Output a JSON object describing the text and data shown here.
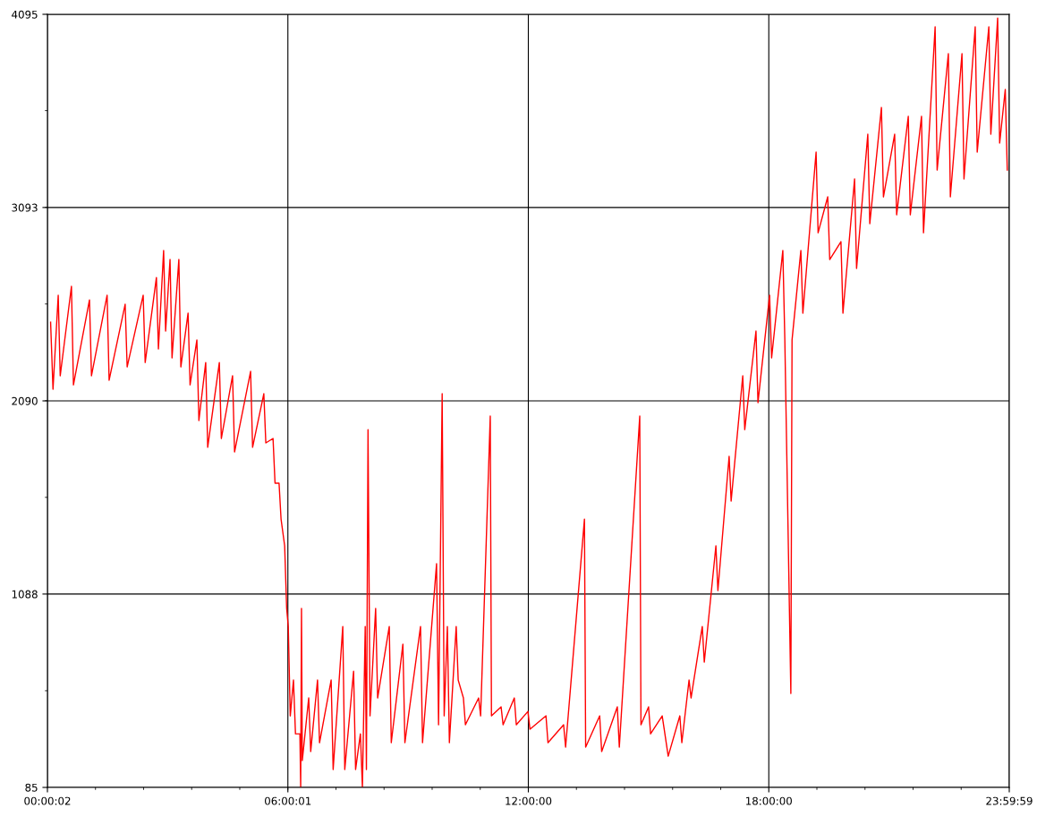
{
  "chart_data": {
    "type": "line",
    "marker": "none",
    "line_style": "solid",
    "grid": true,
    "xlim": [
      0.00056,
      23.99972
    ],
    "ylim": [
      85,
      4095
    ],
    "xticks": [
      {
        "value": 0.00056,
        "label": "00:00:02"
      },
      {
        "value": 6.00028,
        "label": "06:00:01"
      },
      {
        "value": 12,
        "label": "12:00:00"
      },
      {
        "value": 18,
        "label": "18:00:00"
      },
      {
        "value": 23.99972,
        "label": "23:59:59"
      }
    ],
    "yticks": [
      85,
      1088,
      2090,
      3093,
      4095
    ],
    "series": [
      {
        "color": "#ff0000",
        "x": [
          0.08,
          0.14,
          0.27,
          0.32,
          0.6,
          0.65,
          1.05,
          1.1,
          1.49,
          1.54,
          1.94,
          1.99,
          2.39,
          2.44,
          2.72,
          2.77,
          2.9,
          2.95,
          3.06,
          3.11,
          3.28,
          3.33,
          3.51,
          3.56,
          3.73,
          3.78,
          3.95,
          4.0,
          4.29,
          4.34,
          4.62,
          4.67,
          5.07,
          5.12,
          5.4,
          5.45,
          5.63,
          5.68,
          5.78,
          5.83,
          5.92,
          5.97,
          6.01,
          6.06,
          6.14,
          6.19,
          6.3,
          6.32,
          6.34,
          6.36,
          6.52,
          6.57,
          6.74,
          6.79,
          7.08,
          7.13,
          7.37,
          7.42,
          7.64,
          7.69,
          7.81,
          7.86,
          7.93,
          7.96,
          8.0,
          8.05,
          8.19,
          8.24,
          8.53,
          8.58,
          8.87,
          8.92,
          9.31,
          9.36,
          9.71,
          9.76,
          9.85,
          9.9,
          9.98,
          10.03,
          10.2,
          10.25,
          10.38,
          10.43,
          10.76,
          10.81,
          11.05,
          11.08,
          11.32,
          11.37,
          11.65,
          11.7,
          11.99,
          12.04,
          12.44,
          12.49,
          12.88,
          12.93,
          13.4,
          13.43,
          13.78,
          13.83,
          14.22,
          14.27,
          14.78,
          14.81,
          15.0,
          15.05,
          15.34,
          15.39,
          15.49,
          15.78,
          15.83,
          16.01,
          16.06,
          16.34,
          16.39,
          16.68,
          16.73,
          17.01,
          17.06,
          17.35,
          17.4,
          17.68,
          17.73,
          18.02,
          18.07,
          18.35,
          18.4,
          18.55,
          18.58,
          18.8,
          18.85,
          19.18,
          19.23,
          19.47,
          19.52,
          19.8,
          19.85,
          20.14,
          20.19,
          20.47,
          20.52,
          20.81,
          20.86,
          21.14,
          21.19,
          21.48,
          21.53,
          21.81,
          21.86,
          22.15,
          22.2,
          22.48,
          22.53,
          22.82,
          22.87,
          23.15,
          23.2,
          23.49,
          23.54,
          23.71,
          23.76,
          23.9,
          23.95
        ],
        "values": [
          2498,
          2150,
          2638,
          2220,
          2684,
          2173,
          2614,
          2220,
          2638,
          2197,
          2591,
          2266,
          2638,
          2289,
          2730,
          2359,
          2870,
          2452,
          2823,
          2313,
          2823,
          2266,
          2545,
          2173,
          2406,
          1988,
          2289,
          1849,
          2289,
          1895,
          2220,
          1825,
          2243,
          1849,
          2127,
          1872,
          1895,
          1663,
          1663,
          1477,
          1338,
          1013,
          920,
          456,
          642,
          363,
          363,
          85,
          1013,
          224,
          549,
          271,
          642,
          317,
          642,
          178,
          920,
          178,
          688,
          178,
          363,
          85,
          920,
          178,
          1941,
          456,
          1013,
          549,
          920,
          317,
          828,
          317,
          920,
          317,
          1245,
          410,
          2127,
          456,
          920,
          317,
          920,
          642,
          549,
          410,
          549,
          456,
          2011,
          456,
          503,
          410,
          549,
          410,
          479,
          387,
          456,
          317,
          410,
          294,
          1477,
          294,
          456,
          271,
          503,
          294,
          2011,
          410,
          503,
          363,
          456,
          387,
          247,
          456,
          317,
          642,
          549,
          920,
          735,
          1338,
          1106,
          1802,
          1570,
          2220,
          1941,
          2452,
          2081,
          2638,
          2313,
          2870,
          2406,
          572,
          2406,
          2870,
          2545,
          3380,
          2962,
          3148,
          2823,
          2916,
          2545,
          3241,
          2777,
          3473,
          3009,
          3612,
          3148,
          3473,
          3055,
          3566,
          3055,
          3566,
          2962,
          4030,
          3287,
          3891,
          3148,
          3891,
          3241,
          4030,
          3380,
          4030,
          3473,
          4076,
          3427,
          3705,
          3287
        ]
      }
    ]
  }
}
